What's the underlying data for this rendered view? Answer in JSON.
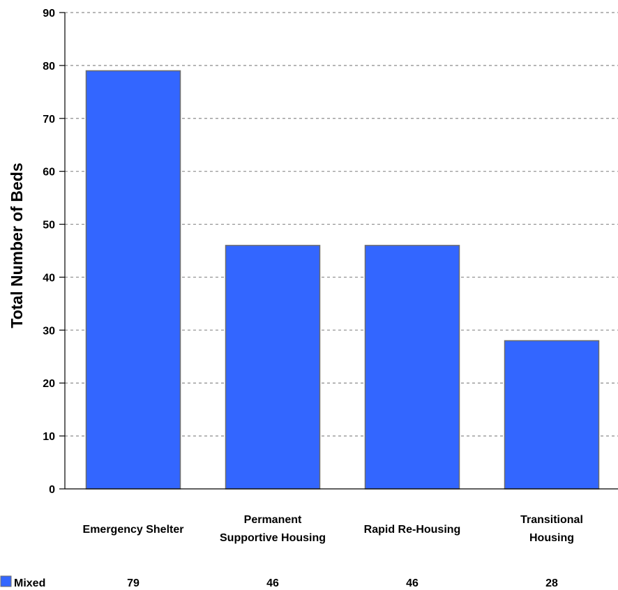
{
  "chart_data": {
    "type": "bar",
    "categories": [
      "Emergency Shelter",
      "Permanent Supportive Housing",
      "Rapid Re-Housing",
      "Transitional Housing"
    ],
    "category_lines": [
      [
        "Emergency Shelter"
      ],
      [
        "Permanent",
        "Supportive Housing"
      ],
      [
        "Rapid Re-Housing"
      ],
      [
        "Transitional",
        "Housing"
      ]
    ],
    "series": [
      {
        "name": "Mixed",
        "values": [
          79,
          46,
          46,
          28
        ],
        "color": "#3366ff"
      }
    ],
    "title": "",
    "xlabel": "",
    "ylabel": "Total Number of Beds",
    "ylim": [
      0,
      90
    ],
    "yticks": [
      0,
      10,
      20,
      30,
      40,
      50,
      60,
      70,
      80,
      90
    ],
    "grid": "horizontal-dashed",
    "legend": "bottom-left data table"
  }
}
